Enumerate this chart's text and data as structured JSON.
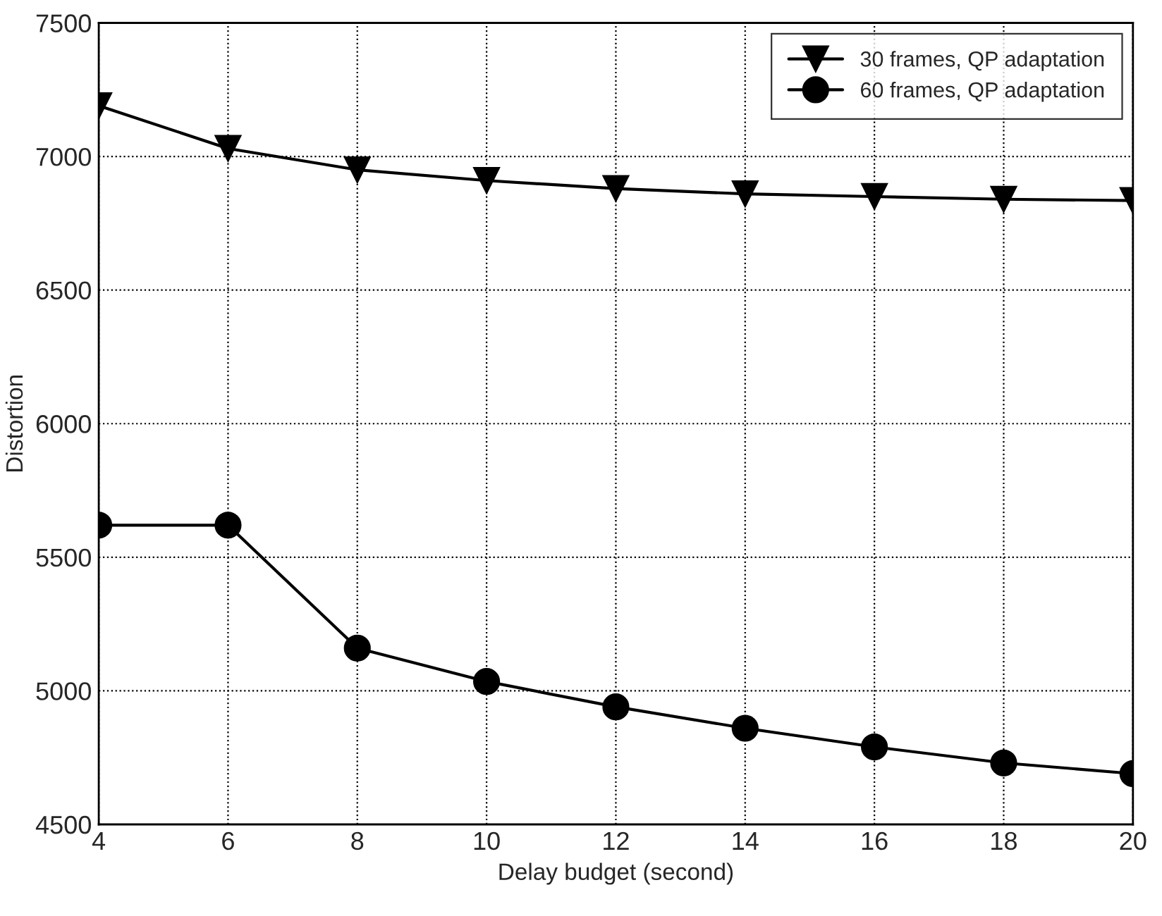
{
  "chart_data": {
    "type": "line",
    "xlabel": "Delay budget (second)",
    "ylabel": "Distortion",
    "x": [
      4,
      6,
      8,
      10,
      12,
      14,
      16,
      18,
      20
    ],
    "series": [
      {
        "name": "30 frames, QP adaptation",
        "color": "#000000",
        "marker": "triangle",
        "values": [
          7190,
          7030,
          6950,
          6910,
          6880,
          6860,
          6850,
          6840,
          6835
        ]
      },
      {
        "name": "60 frames, QP adaptation",
        "color": "#000000",
        "marker": "circle",
        "values": [
          5620,
          5620,
          5160,
          5035,
          4940,
          4860,
          4790,
          4730,
          4690
        ]
      }
    ],
    "xlim": [
      4,
      20
    ],
    "xticks": [
      4,
      6,
      8,
      10,
      12,
      14,
      16,
      18,
      20
    ],
    "ylim": [
      4500,
      7500
    ],
    "yticks": [
      4500,
      5000,
      5500,
      6000,
      6500,
      7000,
      7500
    ],
    "grid": true,
    "legend": "top right",
    "line_style": "solid"
  }
}
